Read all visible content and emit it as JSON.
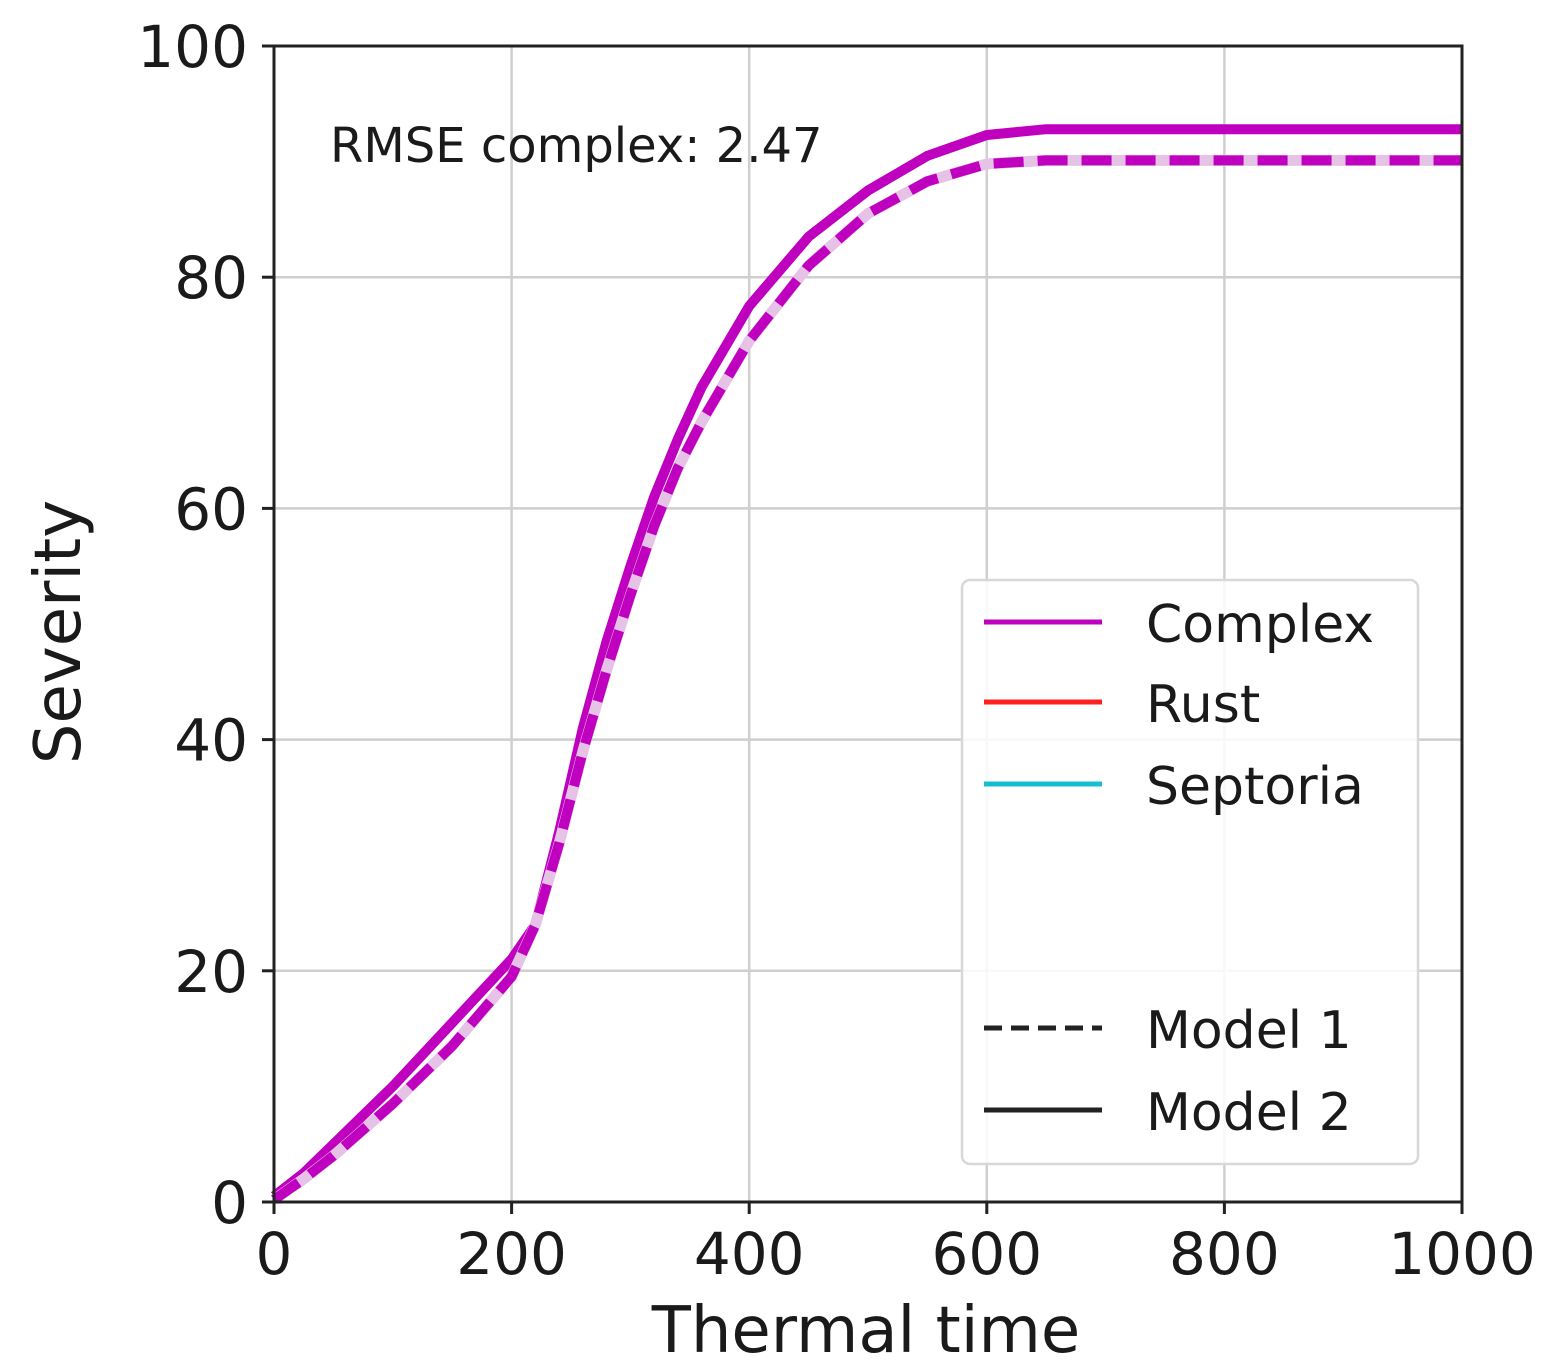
{
  "chart_data": {
    "type": "line",
    "xlabel": "Thermal time",
    "ylabel": "Severity",
    "xlim": [
      0,
      1000
    ],
    "ylim": [
      0,
      100
    ],
    "xticks": [
      "0",
      "200",
      "400",
      "600",
      "800",
      "1000"
    ],
    "yticks": [
      "0",
      "20",
      "40",
      "60",
      "80",
      "100"
    ],
    "grid": true,
    "legend_placement": "lower-right",
    "annotation": "RMSE complex: 2.47",
    "legend": {
      "colors": [
        {
          "label": "Complex",
          "color": "#bf00bf"
        },
        {
          "label": "Rust",
          "color": "#ff2020"
        },
        {
          "label": "Septoria",
          "color": "#17becf"
        }
      ],
      "styles": [
        {
          "label": "Model 1",
          "dash": "dashed"
        },
        {
          "label": "Model 2",
          "dash": "solid"
        }
      ]
    },
    "series": [
      {
        "name": "Complex",
        "model": "Model 2",
        "color": "#bf00bf",
        "dash": "solid",
        "x": [
          0,
          25,
          50,
          100,
          150,
          200,
          220,
          240,
          260,
          280,
          300,
          320,
          340,
          360,
          380,
          400,
          450,
          500,
          550,
          600,
          650,
          670,
          700,
          800,
          900,
          1000
        ],
        "y": [
          0.5,
          2.5,
          5,
          10,
          15.5,
          21,
          24,
          32,
          41,
          48.5,
          55,
          61,
          66,
          70.5,
          74,
          77.5,
          83.5,
          87.5,
          90.5,
          92.3,
          92.8,
          92.8,
          92.8,
          92.8,
          92.8,
          92.8
        ]
      },
      {
        "name": "Complex",
        "model": "Model 1",
        "color": "#bf00bf",
        "dash": "dashed",
        "x": [
          0,
          25,
          50,
          100,
          150,
          200,
          220,
          240,
          260,
          280,
          300,
          320,
          340,
          360,
          380,
          400,
          450,
          500,
          550,
          600,
          650,
          670,
          700,
          800,
          900,
          1000
        ],
        "y": [
          0.2,
          2,
          4,
          8.5,
          13.5,
          19.5,
          24,
          31,
          39,
          46,
          52.5,
          58.5,
          63.5,
          67.5,
          71,
          74.5,
          81,
          85.5,
          88.3,
          89.8,
          90.1,
          90.1,
          90.1,
          90.1,
          90.1,
          90.1
        ]
      }
    ]
  }
}
